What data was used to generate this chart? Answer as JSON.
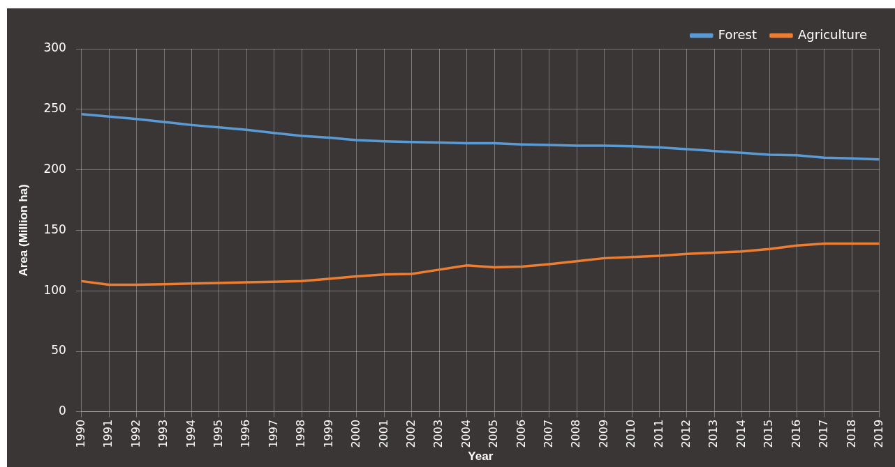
{
  "chart_data": {
    "type": "line",
    "xlabel": "Year",
    "ylabel": "Area (Million ha)",
    "categories": [
      "1990",
      "1991",
      "1992",
      "1993",
      "1994",
      "1995",
      "1996",
      "1997",
      "1998",
      "1999",
      "2000",
      "2001",
      "2002",
      "2003",
      "2004",
      "2005",
      "2006",
      "2007",
      "2008",
      "2009",
      "2010",
      "2011",
      "2012",
      "2013",
      "2014",
      "2015",
      "2016",
      "2017",
      "2018",
      "2019"
    ],
    "series": [
      {
        "name": "Forest",
        "color": "#5b9bd5",
        "values": [
          246,
          244,
          242,
          239.5,
          237,
          235,
          233,
          230.5,
          228,
          226.5,
          224.5,
          223.5,
          223,
          222.5,
          222,
          222,
          221,
          220.5,
          220,
          220,
          219.5,
          218.5,
          217,
          215.5,
          214,
          212.5,
          212,
          210,
          209.5,
          208.5
        ]
      },
      {
        "name": "Agriculture",
        "color": "#ed7d31",
        "values": [
          108,
          105,
          105,
          105.5,
          106,
          106.5,
          107,
          107.5,
          108,
          110,
          112,
          113.5,
          114,
          117.5,
          121,
          119.5,
          120,
          122,
          124.5,
          127,
          128,
          129,
          130.5,
          131.5,
          132.5,
          134.5,
          137.5,
          139,
          139,
          139
        ]
      }
    ],
    "ylim": [
      0,
      300
    ],
    "yticks": [
      0,
      50,
      100,
      150,
      200,
      250,
      300
    ],
    "grid": true,
    "legend": "top right",
    "marker": "none",
    "line_style": "solid"
  }
}
